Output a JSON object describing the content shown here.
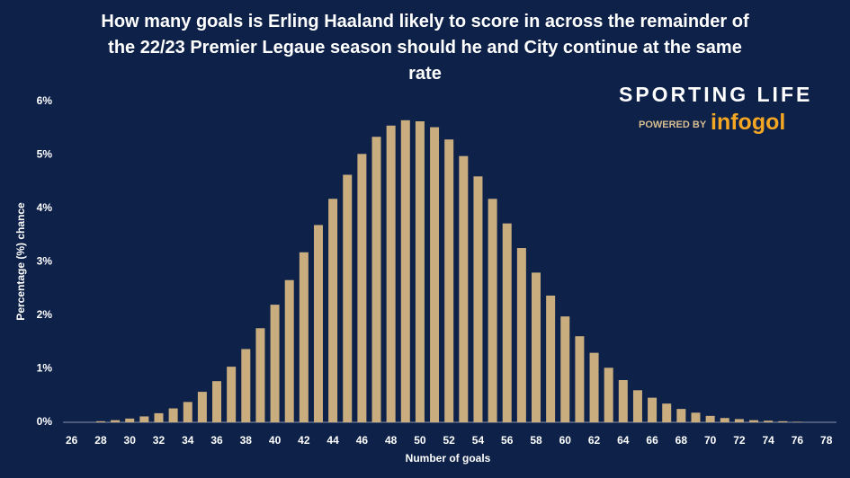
{
  "chart_data": {
    "type": "bar",
    "title": "How many goals is Erling Haaland likely to score in across the remainder of the 22/23 Premier Legaue season should he and City continue at the same rate",
    "x_label": "Number of goals",
    "y_label": "Percentage (%) chance",
    "x": [
      26,
      27,
      28,
      29,
      30,
      31,
      32,
      33,
      34,
      35,
      36,
      37,
      38,
      39,
      40,
      41,
      42,
      43,
      44,
      45,
      46,
      47,
      48,
      49,
      50,
      51,
      52,
      53,
      54,
      55,
      56,
      57,
      58,
      59,
      60,
      61,
      62,
      63,
      64,
      65,
      66,
      67,
      68,
      69,
      70,
      71,
      72,
      73,
      74,
      75,
      76,
      77,
      78
    ],
    "values": [
      0,
      0,
      0.02,
      0.04,
      0.07,
      0.11,
      0.17,
      0.26,
      0.38,
      0.57,
      0.77,
      1.04,
      1.37,
      1.76,
      2.2,
      2.66,
      3.18,
      3.69,
      4.18,
      4.63,
      5.02,
      5.34,
      5.55,
      5.65,
      5.63,
      5.52,
      5.29,
      4.98,
      4.6,
      4.18,
      3.72,
      3.26,
      2.8,
      2.37,
      1.98,
      1.61,
      1.3,
      1.02,
      0.79,
      0.6,
      0.46,
      0.35,
      0.25,
      0.18,
      0.12,
      0.08,
      0.06,
      0.04,
      0.03,
      0.02,
      0.01,
      0,
      0
    ],
    "color": "#c9ad7f",
    "xlim": [
      25.4,
      78.7
    ],
    "xticks": [
      26,
      28,
      30,
      32,
      34,
      36,
      38,
      40,
      42,
      44,
      46,
      48,
      50,
      52,
      54,
      56,
      58,
      60,
      62,
      64,
      66,
      68,
      70,
      72,
      74,
      76,
      78
    ],
    "ylim": [
      0,
      6
    ],
    "yticks": [
      {
        "value": 0,
        "label": "0%"
      },
      {
        "value": 1,
        "label": "1%"
      },
      {
        "value": 2,
        "label": "2%"
      },
      {
        "value": 3,
        "label": "3%"
      },
      {
        "value": 4,
        "label": "4%"
      },
      {
        "value": 5,
        "label": "5%"
      },
      {
        "value": 6,
        "label": "6%"
      }
    ],
    "grid": false,
    "logo": {
      "name": "SPORTING LIFE",
      "powered_by": "POWERED BY",
      "brand": "infogol"
    }
  }
}
